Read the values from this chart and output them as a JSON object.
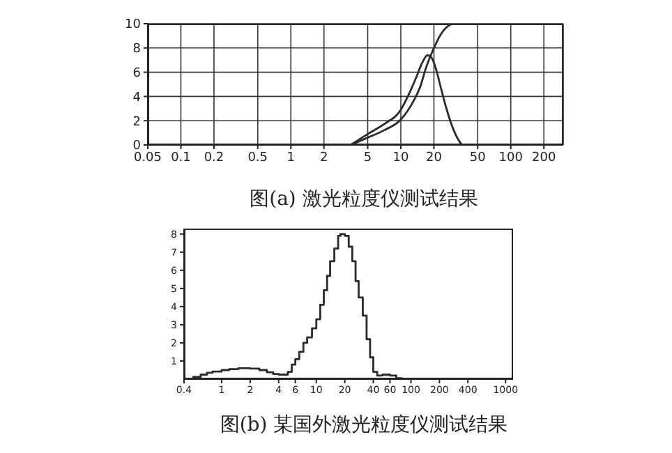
{
  "chart_data": [
    {
      "type": "line",
      "title": "图(a) 激光粒度仪测试结果",
      "xlim": [
        0.05,
        300
      ],
      "xticks": [
        0.05,
        0.1,
        0.2,
        0.5,
        1,
        2,
        5,
        10,
        20,
        50,
        100,
        200
      ],
      "ylim": [
        0,
        10
      ],
      "yticks": [
        0,
        2,
        4,
        6,
        8,
        10
      ],
      "log": "x",
      "grid": true,
      "marker": "none",
      "series": [
        {
          "color": "#2a2a2a",
          "x": [
            3.5,
            5,
            7,
            10,
            13,
            15,
            17,
            20,
            23,
            26,
            30,
            35,
            50,
            100,
            300
          ],
          "values": [
            0,
            0.6,
            1.2,
            2.1,
            3.6,
            4.8,
            6.4,
            8.0,
            9.1,
            9.7,
            10,
            10,
            10,
            10,
            10
          ]
        },
        {
          "color": "#2a2a2a",
          "x": [
            3.5,
            5,
            7,
            10,
            12,
            14,
            15.5,
            17.5,
            19,
            21,
            23,
            26,
            30,
            33,
            36
          ],
          "values": [
            0,
            0.9,
            1.7,
            2.9,
            4.3,
            5.7,
            6.7,
            7.4,
            7.2,
            6.2,
            4.8,
            3.0,
            1.3,
            0.5,
            0
          ]
        }
      ]
    },
    {
      "type": "step",
      "title": "图(b) 某国外激光粒度仪测试结果",
      "xlim": [
        0.4,
        1200
      ],
      "xticks": [
        0.4,
        1,
        2,
        4,
        6,
        10,
        20,
        40,
        60,
        100,
        200,
        400,
        1000
      ],
      "ylim": [
        0,
        8.3
      ],
      "yticks": [
        1,
        2,
        3,
        4,
        5,
        6,
        7,
        8
      ],
      "log": "x",
      "grid": false,
      "marker": "none",
      "series": [
        {
          "color": "#2a2a2a",
          "x": [
            0.4,
            0.5,
            0.6,
            0.7,
            0.8,
            1,
            1.2,
            1.5,
            1.8,
            2,
            2.5,
            3,
            3.5,
            4,
            4.5,
            5,
            5.5,
            6,
            6.6,
            7.3,
            8,
            9,
            10,
            11,
            12,
            13,
            14,
            15.5,
            17,
            18,
            20,
            22,
            24,
            26,
            28,
            31,
            34,
            37,
            40,
            44,
            50,
            60,
            70,
            80
          ],
          "values": [
            0,
            0.12,
            0.25,
            0.35,
            0.42,
            0.5,
            0.55,
            0.6,
            0.6,
            0.58,
            0.5,
            0.38,
            0.28,
            0.25,
            0.25,
            0.4,
            0.8,
            1.1,
            1.5,
            2.0,
            2.3,
            2.8,
            3.3,
            4.1,
            4.9,
            5.7,
            6.5,
            7.2,
            7.9,
            8.0,
            7.9,
            7.3,
            6.5,
            5.4,
            4.5,
            3.5,
            2.2,
            1.2,
            0.4,
            0.2,
            0.25,
            0.2,
            0.05,
            0
          ]
        }
      ]
    }
  ]
}
